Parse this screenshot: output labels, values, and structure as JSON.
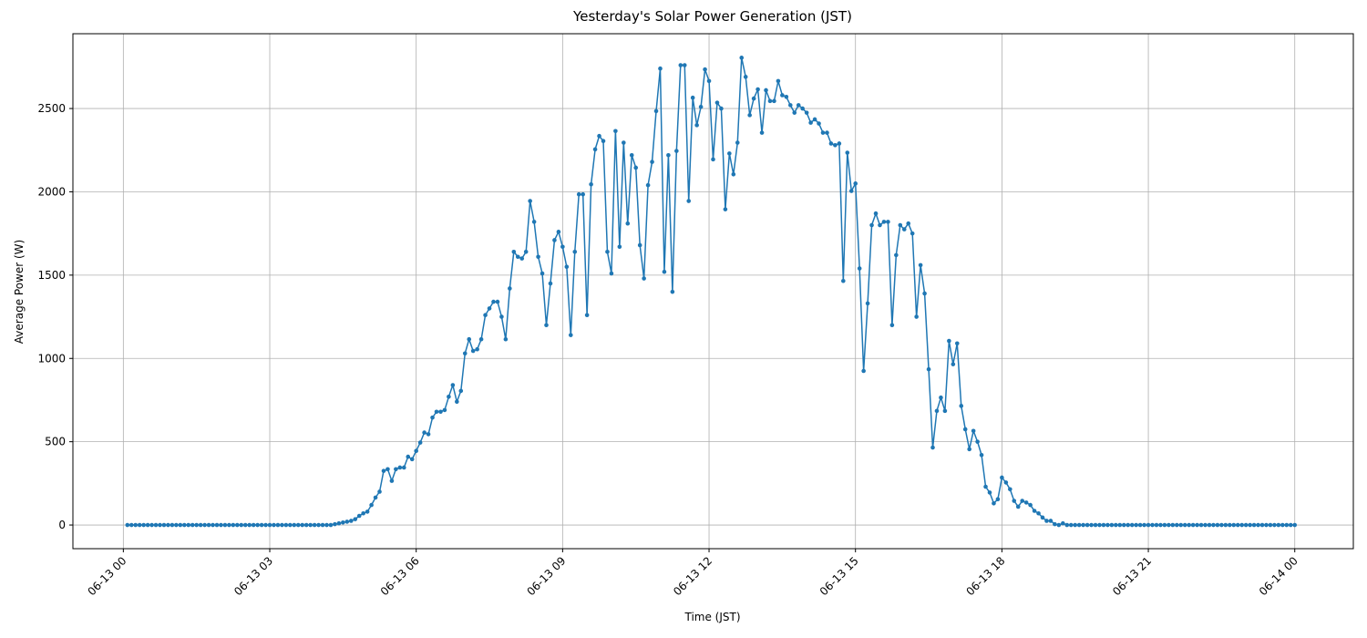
{
  "chart_data": {
    "type": "line",
    "title": "Yesterday's Solar Power Generation (JST)",
    "xlabel": "Time (JST)",
    "ylabel": "Average Power (W)",
    "x": [
      5,
      10,
      15,
      20,
      25,
      30,
      35,
      40,
      45,
      50,
      55,
      60,
      65,
      70,
      75,
      80,
      85,
      90,
      95,
      100,
      105,
      110,
      115,
      120,
      125,
      130,
      135,
      140,
      145,
      150,
      155,
      160,
      165,
      170,
      175,
      180,
      185,
      190,
      195,
      200,
      205,
      210,
      215,
      220,
      225,
      230,
      235,
      240,
      245,
      250,
      255,
      260,
      265,
      270,
      275,
      280,
      285,
      290,
      295,
      300,
      305,
      310,
      315,
      320,
      325,
      330,
      335,
      340,
      345,
      350,
      355,
      360,
      365,
      370,
      375,
      380,
      385,
      390,
      395,
      400,
      405,
      410,
      415,
      420,
      425,
      430,
      435,
      440,
      445,
      450,
      455,
      460,
      465,
      470,
      475,
      480,
      485,
      490,
      495,
      500,
      505,
      510,
      515,
      520,
      525,
      530,
      535,
      540,
      545,
      550,
      555,
      560,
      565,
      570,
      575,
      580,
      585,
      590,
      595,
      600,
      605,
      610,
      615,
      620,
      625,
      630,
      635,
      640,
      645,
      650,
      655,
      660,
      665,
      670,
      675,
      680,
      685,
      690,
      695,
      700,
      705,
      710,
      715,
      720,
      725,
      730,
      735,
      740,
      745,
      750,
      755,
      760,
      765,
      770,
      775,
      780,
      785,
      790,
      795,
      800,
      805,
      810,
      815,
      820,
      825,
      830,
      835,
      840,
      845,
      850,
      855,
      860,
      865,
      870,
      875,
      880,
      885,
      890,
      895,
      900,
      905,
      910,
      915,
      920,
      925,
      930,
      935,
      940,
      945,
      950,
      955,
      960,
      965,
      970,
      975,
      980,
      985,
      990,
      995,
      1000,
      1005,
      1010,
      1015,
      1020,
      1025,
      1030,
      1035,
      1040,
      1045,
      1050,
      1055,
      1060,
      1065,
      1070,
      1075,
      1080,
      1085,
      1090,
      1095,
      1100,
      1105,
      1110,
      1115,
      1120,
      1125,
      1130,
      1135,
      1140,
      1145,
      1150,
      1155,
      1160,
      1165,
      1170,
      1175,
      1180,
      1185,
      1190,
      1195,
      1200,
      1205,
      1210,
      1215,
      1220,
      1225,
      1230,
      1235,
      1240,
      1245,
      1250,
      1255,
      1260,
      1265,
      1270,
      1275,
      1280,
      1285,
      1290,
      1295,
      1300,
      1305,
      1310,
      1315,
      1320,
      1325,
      1330,
      1335,
      1340,
      1345,
      1350,
      1355,
      1360,
      1365,
      1370,
      1375,
      1380,
      1385,
      1390,
      1395,
      1400,
      1405,
      1410,
      1415,
      1420,
      1425,
      1430,
      1435,
      1440
    ],
    "series": [
      {
        "name": "Average Power",
        "color": "#1f77b4",
        "values": [
          0,
          0,
          0,
          0,
          0,
          0,
          0,
          0,
          0,
          0,
          0,
          0,
          0,
          0,
          0,
          0,
          0,
          0,
          0,
          0,
          0,
          0,
          0,
          0,
          0,
          0,
          0,
          0,
          0,
          0,
          0,
          0,
          0,
          0,
          0,
          0,
          0,
          0,
          0,
          0,
          0,
          0,
          0,
          0,
          0,
          0,
          0,
          0,
          0,
          0,
          0,
          5,
          10,
          15,
          20,
          25,
          35,
          55,
          70,
          80,
          120,
          165,
          200,
          325,
          335,
          265,
          335,
          345,
          345,
          410,
          395,
          445,
          495,
          555,
          545,
          645,
          680,
          680,
          690,
          770,
          840,
          740,
          805,
          1030,
          1115,
          1045,
          1055,
          1115,
          1260,
          1300,
          1340,
          1340,
          1250,
          1115,
          1420,
          1640,
          1610,
          1600,
          1640,
          1945,
          1820,
          1610,
          1510,
          1200,
          1450,
          1710,
          1760,
          1670,
          1550,
          1140,
          1640,
          1985,
          1985,
          1260,
          2045,
          2255,
          2335,
          2305,
          1640,
          1510,
          2365,
          1670,
          2295,
          1810,
          2220,
          2145,
          1680,
          1480,
          2040,
          2180,
          2485,
          2740,
          1520,
          2220,
          1400,
          2245,
          2760,
          2760,
          1945,
          2565,
          2400,
          2510,
          2735,
          2665,
          2195,
          2535,
          2500,
          1895,
          2230,
          2105,
          2295,
          2805,
          2690,
          2460,
          2560,
          2615,
          2355,
          2610,
          2545,
          2545,
          2665,
          2580,
          2570,
          2520,
          2475,
          2520,
          2500,
          2475,
          2415,
          2435,
          2410,
          2355,
          2355,
          2290,
          2280,
          2290,
          1465,
          2235,
          2005,
          2050,
          1540,
          925,
          1330,
          1800,
          1870,
          1800,
          1820,
          1820,
          1200,
          1620,
          1800,
          1775,
          1810,
          1750,
          1250,
          1560,
          1390,
          935,
          465,
          685,
          765,
          685,
          1105,
          965,
          1090,
          715,
          575,
          455,
          565,
          500,
          420,
          230,
          195,
          130,
          155,
          285,
          255,
          215,
          145,
          110,
          145,
          135,
          120,
          85,
          70,
          45,
          25,
          25,
          5,
          0,
          10,
          0,
          0,
          0,
          0,
          0,
          0,
          0,
          0,
          0,
          0,
          0,
          0,
          0,
          0,
          0,
          0,
          0,
          0,
          0,
          0,
          0,
          0,
          0,
          0,
          0,
          0,
          0,
          0,
          0,
          0,
          0,
          0,
          0,
          0,
          0,
          0,
          0,
          0,
          0,
          0,
          0,
          0,
          0,
          0,
          0,
          0,
          0,
          0,
          0,
          0,
          0,
          0,
          0,
          0,
          0,
          0,
          0
        ]
      }
    ],
    "xlim": [
      -62,
      1512
    ],
    "xticks": [
      {
        "value": 0,
        "label": "06-13 00"
      },
      {
        "value": 180,
        "label": "06-13 03"
      },
      {
        "value": 360,
        "label": "06-13 06"
      },
      {
        "value": 540,
        "label": "06-13 09"
      },
      {
        "value": 720,
        "label": "06-13 12"
      },
      {
        "value": 900,
        "label": "06-13 15"
      },
      {
        "value": 1080,
        "label": "06-13 18"
      },
      {
        "value": 1260,
        "label": "06-13 21"
      },
      {
        "value": 1440,
        "label": "06-14 00"
      }
    ],
    "ylim": [
      -142,
      2949
    ],
    "yticks": [
      0,
      500,
      1000,
      1500,
      2000,
      2500
    ],
    "grid": true
  }
}
